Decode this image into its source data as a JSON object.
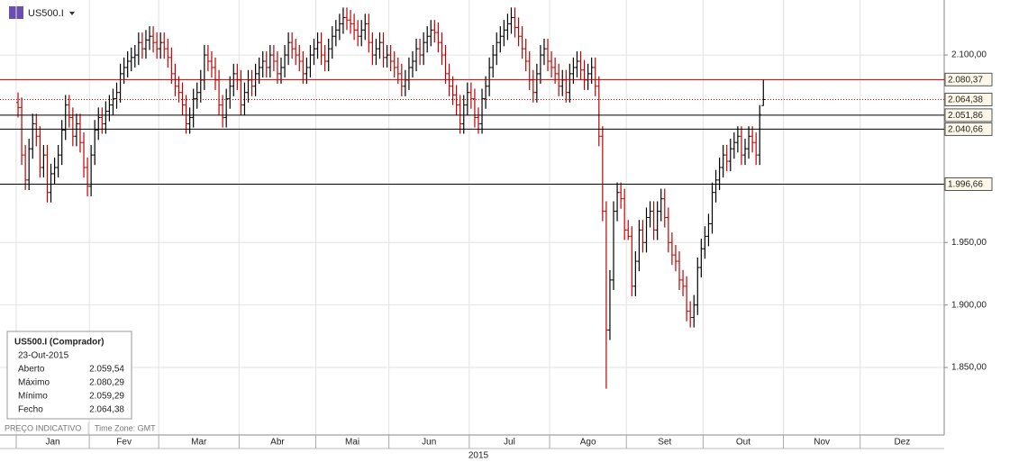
{
  "chart_data": {
    "type": "ohlc",
    "symbol": "US500.I",
    "open": [
      2062,
      2058,
      2020,
      2000,
      2025,
      2045,
      2035,
      2010,
      2020,
      1990,
      2005,
      2010,
      2020,
      2040,
      2060,
      2050,
      2035,
      2045,
      2030,
      2010,
      1995,
      2020,
      2040,
      2050,
      2045,
      2055,
      2060,
      2065,
      2070,
      2085,
      2090,
      2095,
      2098,
      2100,
      2110,
      2105,
      2112,
      2115,
      2110,
      2105,
      2110,
      2105,
      2098,
      2085,
      2075,
      2070,
      2060,
      2045,
      2050,
      2065,
      2070,
      2080,
      2100,
      2095,
      2090,
      2080,
      2060,
      2050,
      2065,
      2075,
      2085,
      2080,
      2060,
      2070,
      2080,
      2075,
      2085,
      2090,
      2095,
      2090,
      2100,
      2095,
      2085,
      2090,
      2100,
      2110,
      2105,
      2100,
      2095,
      2085,
      2090,
      2100,
      2105,
      2110,
      2100,
      2095,
      2105,
      2115,
      2120,
      2125,
      2130,
      2128,
      2125,
      2120,
      2115,
      2120,
      2125,
      2110,
      2100,
      2105,
      2110,
      2098,
      2100,
      2095,
      2090,
      2085,
      2075,
      2080,
      2090,
      2095,
      2105,
      2100,
      2110,
      2115,
      2120,
      2118,
      2110,
      2100,
      2085,
      2075,
      2068,
      2060,
      2045,
      2060,
      2070,
      2065,
      2050,
      2045,
      2065,
      2075,
      2090,
      2100,
      2110,
      2115,
      2120,
      2125,
      2130,
      2122,
      2115,
      2105,
      2095,
      2080,
      2070,
      2085,
      2100,
      2105,
      2095,
      2090,
      2085,
      2075,
      2080,
      2070,
      2085,
      2090,
      2095,
      2088,
      2080,
      2085,
      2090,
      2075,
      2035,
      1975,
      1880,
      1920,
      1975,
      1990,
      1985,
      1960,
      1955,
      1915,
      1935,
      1960,
      1950,
      1970,
      1975,
      1960,
      1975,
      1985,
      1970,
      1950,
      1940,
      1935,
      1920,
      1915,
      1895,
      1890,
      1900,
      1930,
      1945,
      1955,
      1965,
      1990,
      2000,
      2010,
      2020,
      2015,
      2025,
      2030,
      2035,
      2020,
      2025,
      2035,
      2030,
      2020,
      2059.54
    ],
    "high": [
      2070,
      2066,
      2028,
      2033,
      2053,
      2053,
      2043,
      2028,
      2028,
      2013,
      2018,
      2028,
      2048,
      2068,
      2068,
      2058,
      2053,
      2053,
      2038,
      2018,
      2028,
      2048,
      2058,
      2058,
      2063,
      2068,
      2073,
      2078,
      2093,
      2098,
      2103,
      2106,
      2108,
      2118,
      2118,
      2120,
      2123,
      2123,
      2118,
      2118,
      2118,
      2113,
      2106,
      2093,
      2083,
      2078,
      2068,
      2058,
      2073,
      2078,
      2088,
      2108,
      2108,
      2103,
      2098,
      2088,
      2068,
      2073,
      2083,
      2093,
      2093,
      2088,
      2078,
      2088,
      2088,
      2093,
      2098,
      2103,
      2103,
      2108,
      2108,
      2103,
      2098,
      2108,
      2118,
      2118,
      2113,
      2108,
      2103,
      2098,
      2108,
      2113,
      2118,
      2118,
      2108,
      2113,
      2123,
      2128,
      2133,
      2138,
      2138,
      2136,
      2133,
      2128,
      2128,
      2133,
      2133,
      2118,
      2113,
      2118,
      2118,
      2108,
      2108,
      2103,
      2098,
      2093,
      2088,
      2098,
      2103,
      2113,
      2113,
      2118,
      2123,
      2128,
      2128,
      2126,
      2118,
      2108,
      2093,
      2083,
      2076,
      2068,
      2068,
      2078,
      2078,
      2073,
      2058,
      2073,
      2083,
      2098,
      2108,
      2118,
      2123,
      2128,
      2133,
      2138,
      2138,
      2130,
      2123,
      2113,
      2103,
      2088,
      2093,
      2108,
      2113,
      2113,
      2103,
      2098,
      2093,
      2088,
      2088,
      2093,
      2098,
      2103,
      2103,
      2096,
      2093,
      2098,
      2098,
      2083,
      2043,
      1983,
      1928,
      1983,
      1998,
      1998,
      1993,
      1968,
      1963,
      1943,
      1968,
      1968,
      1978,
      1983,
      1983,
      1983,
      1993,
      1993,
      1978,
      1958,
      1948,
      1943,
      1928,
      1923,
      1903,
      1908,
      1938,
      1953,
      1963,
      1973,
      1998,
      2008,
      2018,
      2028,
      2028,
      2033,
      2038,
      2043,
      2043,
      2033,
      2043,
      2043,
      2038,
      2060,
      2080.29
    ],
    "low": [
      2050,
      2012,
      1992,
      1992,
      2017,
      2027,
      2002,
      2002,
      1982,
      1982,
      1997,
      2002,
      2012,
      2032,
      2042,
      2027,
      2027,
      2022,
      2002,
      1987,
      1987,
      2012,
      2032,
      2037,
      2037,
      2047,
      2052,
      2057,
      2062,
      2077,
      2082,
      2087,
      2090,
      2092,
      2097,
      2097,
      2104,
      2102,
      2097,
      2097,
      2097,
      2090,
      2077,
      2067,
      2062,
      2052,
      2037,
      2037,
      2042,
      2057,
      2062,
      2072,
      2087,
      2082,
      2072,
      2052,
      2042,
      2042,
      2057,
      2067,
      2072,
      2052,
      2052,
      2062,
      2067,
      2067,
      2077,
      2082,
      2082,
      2082,
      2087,
      2077,
      2077,
      2082,
      2092,
      2097,
      2092,
      2087,
      2077,
      2077,
      2082,
      2092,
      2097,
      2092,
      2087,
      2087,
      2097,
      2107,
      2112,
      2117,
      2120,
      2117,
      2112,
      2107,
      2107,
      2112,
      2102,
      2092,
      2092,
      2097,
      2090,
      2090,
      2087,
      2082,
      2077,
      2067,
      2067,
      2072,
      2082,
      2087,
      2092,
      2092,
      2102,
      2107,
      2110,
      2102,
      2092,
      2077,
      2067,
      2060,
      2052,
      2037,
      2037,
      2052,
      2057,
      2042,
      2037,
      2037,
      2057,
      2067,
      2082,
      2092,
      2102,
      2107,
      2112,
      2117,
      2114,
      2107,
      2097,
      2087,
      2072,
      2062,
      2062,
      2077,
      2092,
      2087,
      2082,
      2077,
      2067,
      2067,
      2062,
      2062,
      2077,
      2082,
      2080,
      2072,
      2072,
      2077,
      2067,
      2027,
      1967,
      1833,
      1872,
      1912,
      1967,
      1977,
      1952,
      1952,
      1907,
      1907,
      1927,
      1942,
      1942,
      1962,
      1952,
      1952,
      1967,
      1962,
      1942,
      1932,
      1927,
      1912,
      1907,
      1887,
      1882,
      1882,
      1892,
      1922,
      1937,
      1947,
      1957,
      1982,
      1992,
      2002,
      2007,
      2007,
      2017,
      2022,
      2012,
      2012,
      2017,
      2022,
      2012,
      2012,
      2059.29
    ],
    "close": [
      2058,
      2020,
      2000,
      2025,
      2045,
      2035,
      2010,
      2020,
      1990,
      2005,
      2010,
      2020,
      2040,
      2060,
      2050,
      2035,
      2045,
      2030,
      2010,
      1995,
      2020,
      2040,
      2050,
      2045,
      2055,
      2060,
      2065,
      2070,
      2085,
      2090,
      2095,
      2098,
      2100,
      2110,
      2105,
      2112,
      2115,
      2110,
      2105,
      2110,
      2105,
      2098,
      2085,
      2075,
      2070,
      2060,
      2045,
      2050,
      2065,
      2070,
      2080,
      2100,
      2095,
      2090,
      2080,
      2060,
      2050,
      2065,
      2075,
      2085,
      2080,
      2060,
      2070,
      2080,
      2075,
      2085,
      2090,
      2095,
      2090,
      2100,
      2095,
      2085,
      2090,
      2100,
      2110,
      2105,
      2100,
      2095,
      2085,
      2090,
      2100,
      2105,
      2110,
      2100,
      2095,
      2105,
      2115,
      2120,
      2125,
      2130,
      2128,
      2125,
      2120,
      2115,
      2120,
      2125,
      2110,
      2100,
      2105,
      2110,
      2098,
      2100,
      2095,
      2090,
      2085,
      2075,
      2080,
      2090,
      2095,
      2105,
      2100,
      2110,
      2115,
      2120,
      2118,
      2110,
      2100,
      2085,
      2075,
      2068,
      2060,
      2045,
      2060,
      2070,
      2065,
      2050,
      2045,
      2065,
      2075,
      2090,
      2100,
      2110,
      2115,
      2120,
      2125,
      2130,
      2122,
      2115,
      2105,
      2095,
      2080,
      2070,
      2085,
      2100,
      2105,
      2095,
      2090,
      2085,
      2075,
      2080,
      2070,
      2085,
      2090,
      2095,
      2088,
      2080,
      2085,
      2090,
      2075,
      2035,
      1975,
      1880,
      1920,
      1975,
      1990,
      1985,
      1960,
      1955,
      1915,
      1935,
      1960,
      1950,
      1970,
      1975,
      1960,
      1975,
      1985,
      1970,
      1950,
      1940,
      1935,
      1920,
      1915,
      1895,
      1890,
      1900,
      1930,
      1945,
      1955,
      1965,
      1990,
      2000,
      2010,
      2020,
      2015,
      2025,
      2030,
      2035,
      2020,
      2025,
      2035,
      2030,
      2020,
      2052,
      2064.38
    ],
    "up_color": "#000000",
    "down_color": "#c00000",
    "ylim": [
      1796,
      2144
    ],
    "yticks": [
      {
        "value": 1850,
        "label": "1.850,00"
      },
      {
        "value": 1900,
        "label": "1.900,00"
      },
      {
        "value": 1950,
        "label": "1.950,00"
      },
      {
        "value": 2100,
        "label": "2.100,00"
      }
    ],
    "levels": [
      {
        "value": 2080.37,
        "label": "2.080,37",
        "color": "#c00000",
        "dashed": false
      },
      {
        "value": 2064.38,
        "label": "2.064,38",
        "color": "#c00000",
        "dashed": true
      },
      {
        "value": 2051.86,
        "label": "2.051,86",
        "color": "#000000",
        "dashed": false
      },
      {
        "value": 2040.66,
        "label": "2.040,66",
        "color": "#000000",
        "dashed": false
      },
      {
        "value": 1996.66,
        "label": "1.996,66",
        "color": "#000000",
        "dashed": false
      }
    ],
    "xlim": [
      0,
      254
    ],
    "xticks": [
      {
        "value": 0,
        "label": "Jan"
      },
      {
        "value": 20,
        "label": "Fev"
      },
      {
        "value": 39,
        "label": "Mar"
      },
      {
        "value": 61,
        "label": "Abr"
      },
      {
        "value": 82,
        "label": "Mai"
      },
      {
        "value": 102,
        "label": "Jun"
      },
      {
        "value": 124,
        "label": "Jul"
      },
      {
        "value": 146,
        "label": "Ago"
      },
      {
        "value": 167,
        "label": "Set"
      },
      {
        "value": 188,
        "label": "Out"
      },
      {
        "value": 210,
        "label": "Nov"
      },
      {
        "value": 231,
        "label": "Dez"
      }
    ],
    "year": "2015",
    "grid": true,
    "footer": {
      "note": "PREÇO INDICATIVO",
      "timezone": "Time Zone: GMT"
    },
    "info": {
      "title": "US500.I (Comprador)",
      "date": "23-Out-2015",
      "rows": [
        {
          "label": "Aberto",
          "value": "2.059,54"
        },
        {
          "label": "Máximo",
          "value": "2.080,29"
        },
        {
          "label": "Mínimo",
          "value": "2.059,29"
        },
        {
          "label": "Fecho",
          "value": "2.064,38"
        }
      ]
    }
  }
}
